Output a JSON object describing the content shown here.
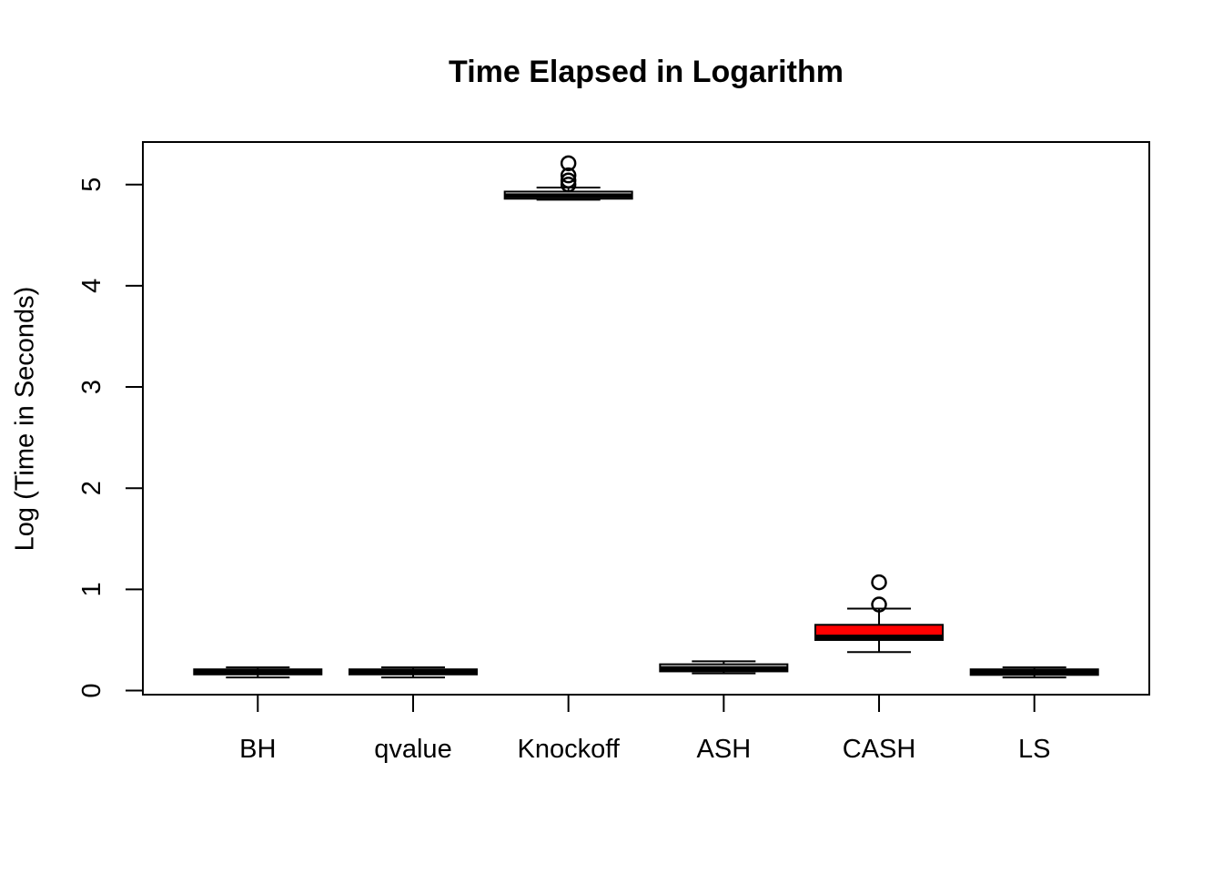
{
  "page": {
    "background_color": "#ffffff",
    "foreground_color": "#000000"
  },
  "chart_data": {
    "type": "boxplot",
    "title": "Time Elapsed in Logarithm",
    "xlabel": "",
    "ylabel": "Log (Time in Seconds)",
    "categories": [
      "BH",
      "qvalue",
      "Knockoff",
      "ASH",
      "CASH",
      "LS"
    ],
    "yticks": [
      0,
      1,
      2,
      3,
      4,
      5
    ],
    "ylim": [
      -0.04,
      5.42
    ],
    "grid": false,
    "legend_position": "none",
    "box_border_color": "#000000",
    "median_color": "#000000",
    "outlier_marker": "open-circle",
    "highlight_color": "#ff0000",
    "series": [
      {
        "name": "BH",
        "whisker_low": 0.13,
        "q1": 0.16,
        "median": 0.18,
        "q3": 0.21,
        "whisker_high": 0.23,
        "outliers": [],
        "fill": "#ffffff"
      },
      {
        "name": "qvalue",
        "whisker_low": 0.13,
        "q1": 0.16,
        "median": 0.18,
        "q3": 0.21,
        "whisker_high": 0.23,
        "outliers": [],
        "fill": "#ffffff"
      },
      {
        "name": "Knockoff",
        "whisker_low": 4.85,
        "q1": 4.86,
        "median": 4.89,
        "q3": 4.93,
        "whisker_high": 4.97,
        "outliers": [
          5.0,
          5.04,
          5.09,
          5.21
        ],
        "fill": "#ffffff"
      },
      {
        "name": "ASH",
        "whisker_low": 0.17,
        "q1": 0.19,
        "median": 0.22,
        "q3": 0.26,
        "whisker_high": 0.29,
        "outliers": [],
        "fill": "#ffffff"
      },
      {
        "name": "CASH",
        "whisker_low": 0.38,
        "q1": 0.5,
        "median": 0.53,
        "q3": 0.65,
        "whisker_high": 0.81,
        "outliers": [
          0.85,
          1.07
        ],
        "fill": "#ff0000"
      },
      {
        "name": "LS",
        "whisker_low": 0.13,
        "q1": 0.155,
        "median": 0.18,
        "q3": 0.21,
        "whisker_high": 0.23,
        "outliers": [],
        "fill": "#ffffff"
      }
    ]
  }
}
